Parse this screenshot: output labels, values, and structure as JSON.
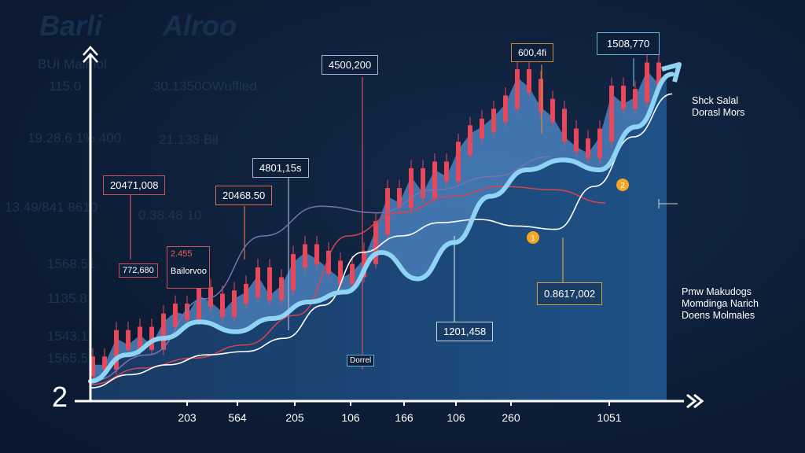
{
  "ghost_text": {
    "title_left": "Barli",
    "title_right": "Alroo",
    "rows": [
      "BUI Maimol",
      "115.0",
      "30.1350OWuffled",
      "19.28.6 1% 400",
      "21.133 Bil",
      "13.49/841 8610",
      "0.38.48 10",
      "1568.51",
      "1135.8",
      "1543.1",
      "1565.5"
    ]
  },
  "annotations": [
    {
      "text": "20471,008",
      "color": "#d0505a"
    },
    {
      "text": "4801,15s",
      "color": "#aab4d6"
    },
    {
      "text": "20468.50",
      "color": "#e0704a"
    },
    {
      "text": "4500,200",
      "color": "#aab4d6"
    },
    {
      "text": "600,4fi",
      "color": "#d08a3a"
    },
    {
      "text": "1508,770",
      "color": "#5fb7e0"
    },
    {
      "text": "772,680",
      "color": "#d0505a"
    },
    {
      "text": "2.455",
      "color": "#e0504a"
    },
    {
      "text": "Bailorvoo",
      "color": "#d0505a"
    },
    {
      "text": "Dorrel",
      "color": "#5fb7e0"
    },
    {
      "text": "1201,458",
      "color": "#c8d4e8"
    },
    {
      "text": "0.8617,002",
      "color": "#d0a040"
    }
  ],
  "side_labels": {
    "top": [
      "Shck Salal",
      "Dorasl Mors"
    ],
    "bottom": [
      "Pmw Makudogs",
      "Momdinga Narich",
      "Doens Molmales"
    ]
  },
  "markers": [
    "1",
    "2"
  ],
  "corner_label": "2",
  "colors": {
    "background": "#0d1d36",
    "candle": "#e8485a",
    "trend": "#8fd4f5",
    "area": "#1c4a7e",
    "candle_area": "#4a82c0",
    "ma_red": "#d9434f",
    "ma_purple": "#7a72b0",
    "ma_white": "#ffffff",
    "marker": "#f5a623"
  },
  "chart_data": {
    "type": "candlestick",
    "title": "",
    "xlabel": "",
    "ylabel": "",
    "x_ticks": [
      "203",
      "564",
      "205",
      "106",
      "166",
      "106",
      "260",
      "1051"
    ],
    "grid": false,
    "ylim": [
      0,
      100
    ],
    "closes": [
      11,
      11,
      19,
      17,
      20,
      17,
      24,
      27,
      26,
      32,
      30,
      27,
      31,
      33,
      38,
      32,
      35,
      42,
      45,
      43,
      40,
      37,
      39,
      43,
      52,
      62,
      60,
      68,
      63,
      70,
      68,
      76,
      81,
      83,
      86,
      90,
      98,
      95,
      89,
      86,
      80,
      77,
      75,
      80,
      93,
      90,
      92,
      100,
      96
    ],
    "series": [
      {
        "key": "trend",
        "values": [
          6,
          14,
          19,
          24,
          21,
          25,
          30,
          33,
          45,
          37,
          48,
          62,
          70,
          73,
          70,
          83,
          99
        ]
      },
      {
        "key": "white",
        "values": [
          4,
          8,
          11,
          14,
          15,
          19,
          29,
          45,
          50,
          54,
          55,
          53,
          52,
          65,
          80,
          93
        ]
      },
      {
        "key": "red",
        "values": [
          5,
          10,
          13,
          17,
          26,
          50,
          57,
          62,
          65,
          64,
          60
        ]
      },
      {
        "key": "purple",
        "values": [
          6,
          14,
          31,
          50,
          59,
          57,
          64,
          68,
          74
        ]
      }
    ]
  }
}
